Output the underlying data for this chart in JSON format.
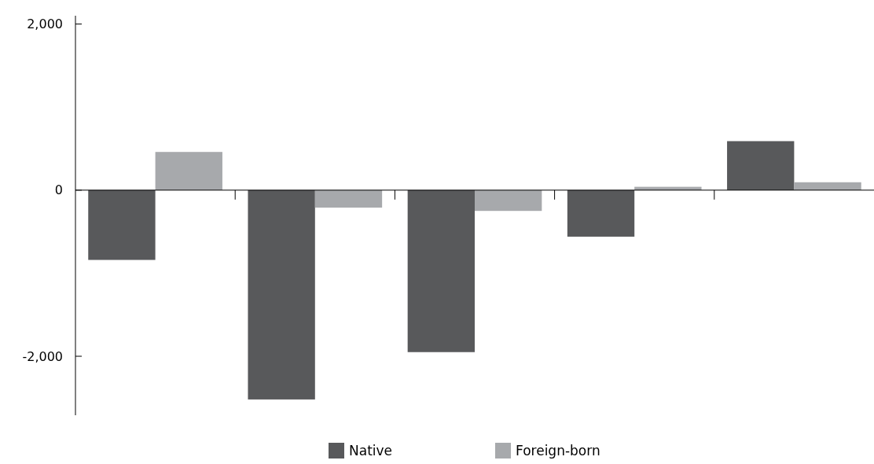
{
  "chart_data": {
    "type": "bar",
    "categories": [
      null,
      null,
      null,
      null,
      null
    ],
    "series": [
      {
        "name": "Native",
        "color": "#58595b",
        "values": [
          -840,
          -2520,
          -1950,
          -560,
          590
        ]
      },
      {
        "name": "Foreign-born",
        "color": "#a7a9ac",
        "values": [
          460,
          -210,
          -250,
          40,
          95
        ]
      }
    ],
    "ylim": [
      -2710,
      2100
    ],
    "yticks": [
      {
        "value": 2000,
        "label": "2,000"
      },
      0,
      {
        "value": -2000,
        "label": "-2,000"
      }
    ],
    "legend": "bottom"
  }
}
